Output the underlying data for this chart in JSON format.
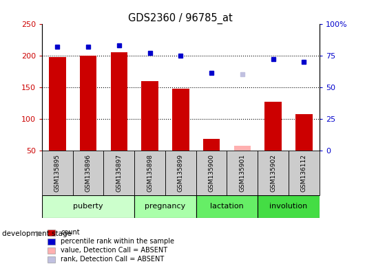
{
  "title": "GDS2360 / 96785_at",
  "samples": [
    "GSM135895",
    "GSM135896",
    "GSM135897",
    "GSM135898",
    "GSM135899",
    "GSM135900",
    "GSM135901",
    "GSM135902",
    "GSM136112"
  ],
  "bar_values": [
    197,
    200,
    205,
    160,
    148,
    68,
    null,
    127,
    107
  ],
  "bar_absent_values": [
    null,
    null,
    null,
    null,
    null,
    null,
    57,
    null,
    null
  ],
  "rank_values": [
    82,
    82,
    83,
    77,
    75,
    61,
    null,
    72,
    70
  ],
  "rank_absent_values": [
    null,
    null,
    null,
    null,
    null,
    null,
    60,
    null,
    null
  ],
  "bar_color": "#cc0000",
  "bar_absent_color": "#ffb0b0",
  "rank_color": "#0000cc",
  "rank_absent_color": "#c0c0e0",
  "ylim_left": [
    50,
    250
  ],
  "ylim_right": [
    0,
    100
  ],
  "yticks_left": [
    50,
    100,
    150,
    200,
    250
  ],
  "yticks_right": [
    0,
    25,
    50,
    75,
    100
  ],
  "ytick_labels_right": [
    "0",
    "25",
    "50",
    "75",
    "100%"
  ],
  "hgrid_lines": [
    100,
    150,
    200
  ],
  "stages": [
    {
      "label": "puberty",
      "samples": [
        "GSM135895",
        "GSM135896",
        "GSM135897"
      ],
      "color": "#ccffcc"
    },
    {
      "label": "pregnancy",
      "samples": [
        "GSM135898",
        "GSM135899"
      ],
      "color": "#aaffaa"
    },
    {
      "label": "lactation",
      "samples": [
        "GSM135900",
        "GSM135901"
      ],
      "color": "#66ee66"
    },
    {
      "label": "involution",
      "samples": [
        "GSM135902",
        "GSM136112"
      ],
      "color": "#44dd44"
    }
  ],
  "dev_stage_label": "development stage",
  "legend_items": [
    {
      "label": "count",
      "color": "#cc0000"
    },
    {
      "label": "percentile rank within the sample",
      "color": "#0000cc"
    },
    {
      "label": "value, Detection Call = ABSENT",
      "color": "#ffb0b0"
    },
    {
      "label": "rank, Detection Call = ABSENT",
      "color": "#c0c0e0"
    }
  ],
  "tick_color_left": "#cc0000",
  "tick_color_right": "#0000cc",
  "bar_width": 0.55,
  "sample_box_color": "#cccccc",
  "plot_bg": "#ffffff"
}
